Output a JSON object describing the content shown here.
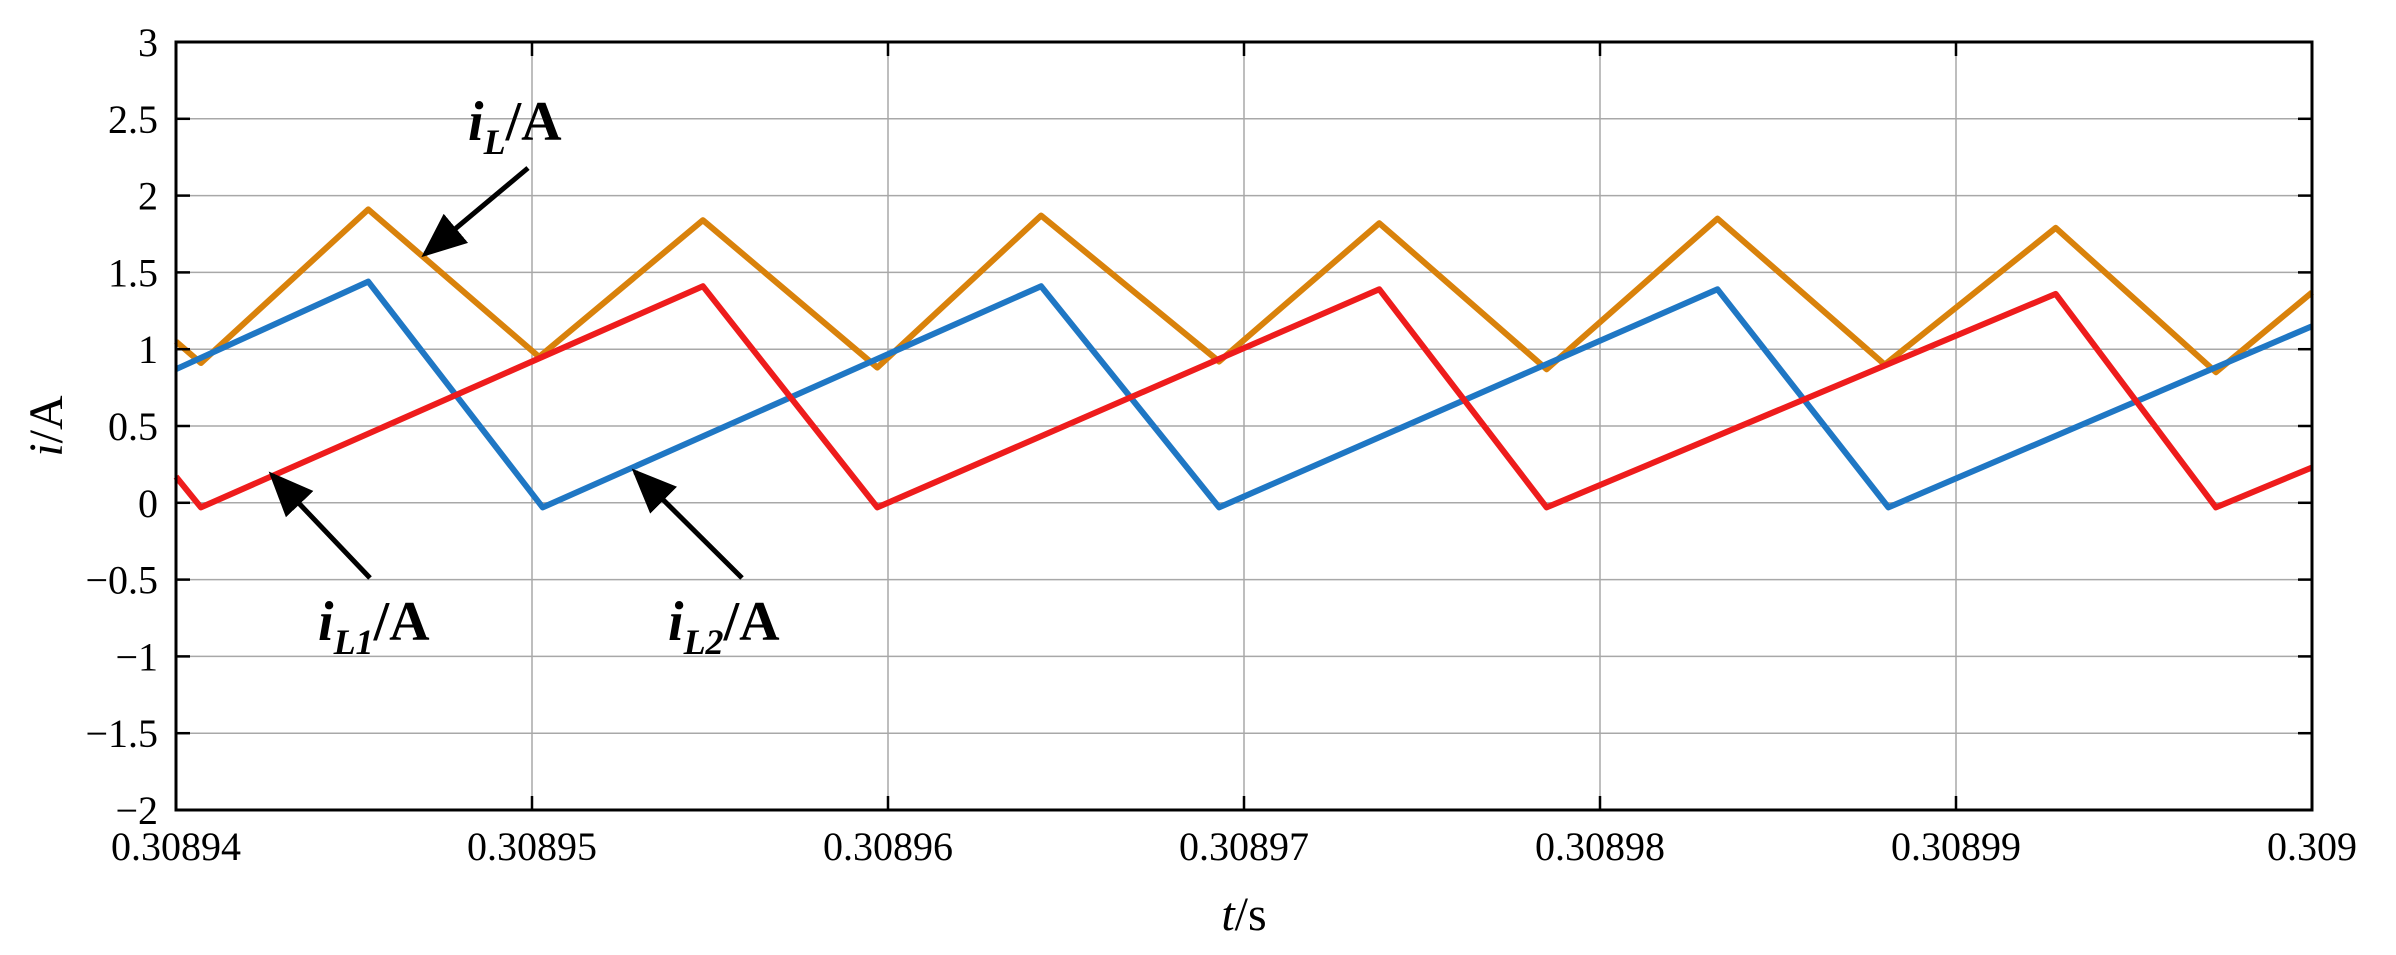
{
  "chart_data": {
    "type": "line",
    "xlabel": {
      "italic": "t",
      "rest": "/s"
    },
    "ylabel": {
      "italic": "i",
      "rest": "/A"
    },
    "xlim": [
      0.30894,
      0.309
    ],
    "ylim": [
      -2,
      3
    ],
    "grid": true,
    "x_ticks": [
      "0.30894",
      "0.30895",
      "0.30896",
      "0.30897",
      "0.30898",
      "0.30899",
      "0.309"
    ],
    "y_ticks": [
      "3",
      "2.5",
      "2",
      "1.5",
      "1",
      "0.5",
      "0",
      "−0.5",
      "−1",
      "−1.5",
      "−2"
    ],
    "x_tick_values": [
      0.30894,
      0.30895,
      0.30896,
      0.30897,
      0.30898,
      0.30899,
      0.309
    ],
    "y_tick_values": [
      3,
      2.5,
      2,
      1.5,
      1,
      0.5,
      0,
      -0.5,
      -1,
      -1.5,
      -2
    ],
    "series": [
      {
        "name": "iL",
        "color": "#d9820b",
        "points": [
          [
            0.30894,
            1.05
          ],
          [
            0.3089407,
            0.91
          ],
          [
            0.3089454,
            1.91
          ],
          [
            0.3089502,
            0.95
          ],
          [
            0.3089548,
            1.84
          ],
          [
            0.3089597,
            0.88
          ],
          [
            0.3089643,
            1.87
          ],
          [
            0.3089693,
            0.92
          ],
          [
            0.3089738,
            1.82
          ],
          [
            0.3089785,
            0.87
          ],
          [
            0.3089833,
            1.85
          ],
          [
            0.308988,
            0.9
          ],
          [
            0.3089928,
            1.79
          ],
          [
            0.3089973,
            0.85
          ],
          [
            0.309,
            1.37
          ]
        ]
      },
      {
        "name": "iL1",
        "color": "#1f77c4",
        "points": [
          [
            0.30894,
            0.87
          ],
          [
            0.3089454,
            1.44
          ],
          [
            0.3089503,
            -0.03
          ],
          [
            0.3089643,
            1.41
          ],
          [
            0.3089693,
            -0.03
          ],
          [
            0.3089833,
            1.39
          ],
          [
            0.3089881,
            -0.03
          ],
          [
            0.309,
            1.15
          ]
        ]
      },
      {
        "name": "iL2",
        "color": "#ee1c1c",
        "points": [
          [
            0.30894,
            0.17
          ],
          [
            0.3089407,
            -0.03
          ],
          [
            0.3089548,
            1.41
          ],
          [
            0.3089597,
            -0.03
          ],
          [
            0.3089738,
            1.39
          ],
          [
            0.3089785,
            -0.03
          ],
          [
            0.3089928,
            1.36
          ],
          [
            0.3089973,
            -0.03
          ],
          [
            0.309,
            0.23
          ]
        ]
      }
    ],
    "annotations": [
      {
        "id": "iL",
        "sub": "L",
        "suffix": "/A",
        "arrow_to": [
          0.308947,
          1.62
        ]
      },
      {
        "id": "iL1",
        "sub": "L1",
        "suffix": "/A",
        "arrow_to": [
          0.3089427,
          0.18
        ]
      },
      {
        "id": "iL2",
        "sub": "L2",
        "suffix": "/A",
        "arrow_to": [
          0.3089529,
          0.2
        ]
      }
    ]
  }
}
